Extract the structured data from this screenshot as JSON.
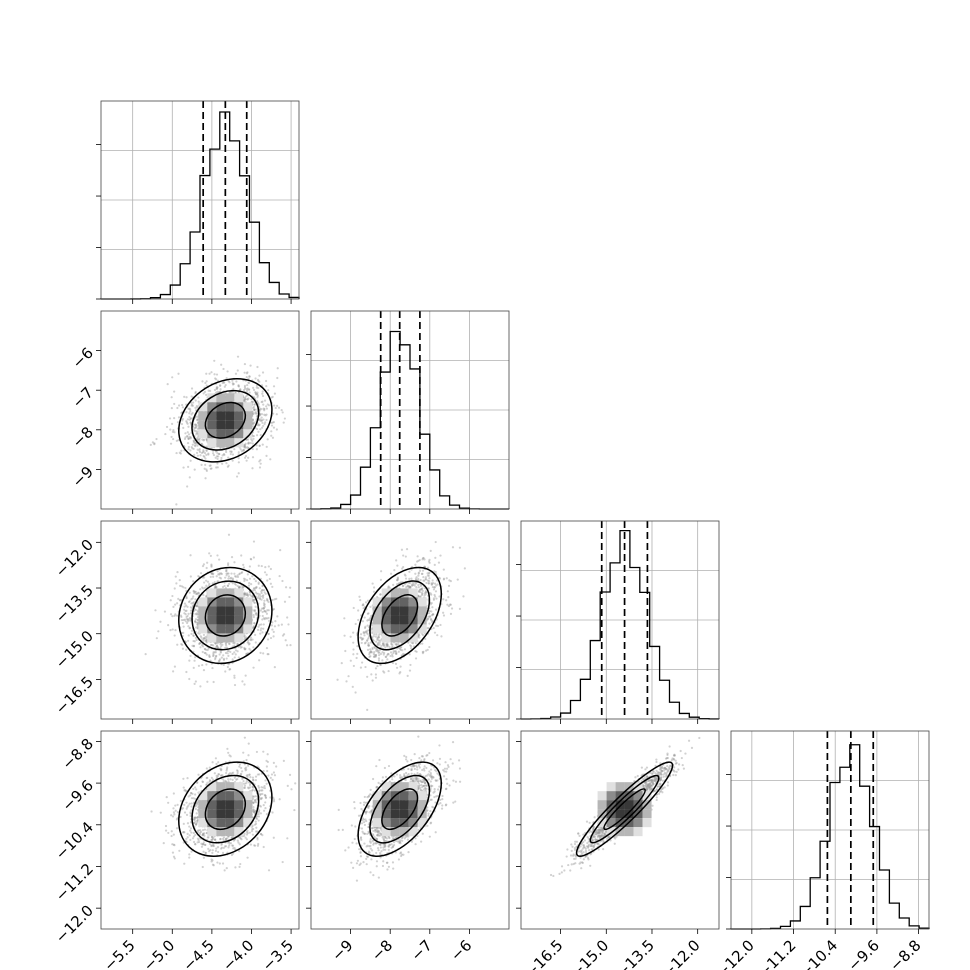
{
  "chart_data": {
    "type": "corner",
    "parameters": [
      {
        "mean": -4.33,
        "sd": 0.28,
        "range": [
          -5.9,
          -3.4
        ],
        "quantiles": [
          -4.61,
          -4.33,
          -4.06
        ],
        "ticks": [
          -5.5,
          -5.0,
          -4.5,
          -4.0,
          -3.5
        ],
        "tick_labels": [
          "−5.5",
          "−5.0",
          "−4.5",
          "−4.0",
          "−3.5"
        ]
      },
      {
        "mean": -7.76,
        "sd": 0.5,
        "range": [
          -10.0,
          -5.0
        ],
        "quantiles": [
          -8.24,
          -7.76,
          -7.25
        ],
        "ticks": [
          -9,
          -8,
          -7,
          -6
        ],
        "tick_labels": [
          "−9",
          "−8",
          "−7",
          "−6"
        ]
      },
      {
        "mean": -14.4,
        "sd": 0.75,
        "range": [
          -17.8,
          -11.3
        ],
        "quantiles": [
          -15.15,
          -14.4,
          -13.65
        ],
        "ticks": [
          -16.5,
          -15.0,
          -13.5,
          -12.0
        ],
        "tick_labels": [
          "−16.5",
          "−15.0",
          "−13.5",
          "−12.0"
        ]
      },
      {
        "mean": -10.1,
        "sd": 0.43,
        "range": [
          -12.4,
          -8.6
        ],
        "quantiles": [
          -10.55,
          -10.1,
          -9.67
        ],
        "ticks": [
          -12.0,
          -11.2,
          -10.4,
          -9.6,
          -8.8
        ],
        "tick_labels": [
          "−12.0",
          "−11.2",
          "−10.4",
          "−9.6",
          "−8.8"
        ]
      }
    ],
    "correlations": {
      "1-0": 0.25,
      "2-0": 0.1,
      "2-1": 0.45,
      "3-0": 0.25,
      "3-1": 0.55,
      "3-2": 0.93
    },
    "n_bins": 20,
    "samples_per_scatter": 1500,
    "contour_levels": "1.0, 1.5, 2.0 sigma ellipses",
    "grid": true,
    "title": "",
    "xlabel": "",
    "ylabel": "",
    "colors": {
      "line": "#000000",
      "scatter": "#9a9a9a",
      "grid": "#b0b0b0"
    }
  }
}
